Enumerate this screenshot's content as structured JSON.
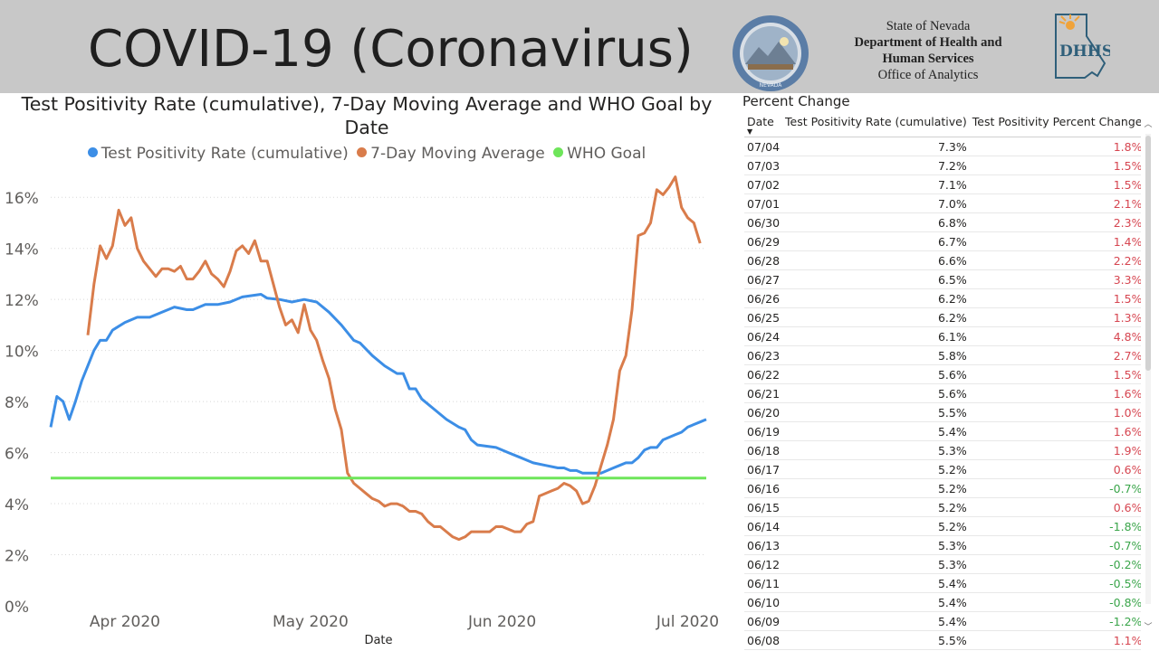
{
  "header": {
    "title": "COVID-19 (Coronavirus)",
    "org_line1": "State of Nevada",
    "org_line2": "Department of Health and",
    "org_line3": "Human Services",
    "org_line4": "Office of Analytics",
    "seal_text": "THE GREAT SEAL OF THE STATE OF NEVADA",
    "logo_text": "DHHS"
  },
  "colors": {
    "header_bg": "#c8c8c8",
    "positivity": "#3c8ee6",
    "moving_avg": "#d97c4b",
    "who_goal": "#6ee55a",
    "positive_change": "#d64550",
    "negative_change": "#3aa54a"
  },
  "chart_data": {
    "type": "line",
    "title": "Test Positivity Rate (cumulative), 7-Day Moving Average and WHO Goal by Date",
    "xlabel": "Date",
    "ylabel": "",
    "x_ticks": [
      "Apr 2020",
      "May 2020",
      "Jun 2020",
      "Jul 2020"
    ],
    "y_ticks": [
      "0%",
      "2%",
      "4%",
      "6%",
      "8%",
      "10%",
      "12%",
      "14%",
      "16%"
    ],
    "ylim": [
      0,
      17
    ],
    "x_range": [
      "2020-03-20",
      "2020-07-04"
    ],
    "grid": true,
    "legend_position": "top",
    "series": [
      {
        "name": "Test Positivity Rate (cumulative)",
        "color": "#3c8ee6",
        "points": [
          [
            "2020-03-20",
            7.0
          ],
          [
            "2020-03-21",
            8.2
          ],
          [
            "2020-03-22",
            8.0
          ],
          [
            "2020-03-23",
            7.3
          ],
          [
            "2020-03-24",
            8.0
          ],
          [
            "2020-03-25",
            8.8
          ],
          [
            "2020-03-26",
            9.4
          ],
          [
            "2020-03-27",
            10.0
          ],
          [
            "2020-03-28",
            10.4
          ],
          [
            "2020-03-29",
            10.4
          ],
          [
            "2020-03-30",
            10.8
          ],
          [
            "2020-04-01",
            11.1
          ],
          [
            "2020-04-03",
            11.3
          ],
          [
            "2020-04-05",
            11.3
          ],
          [
            "2020-04-07",
            11.5
          ],
          [
            "2020-04-09",
            11.7
          ],
          [
            "2020-04-11",
            11.6
          ],
          [
            "2020-04-12",
            11.6
          ],
          [
            "2020-04-14",
            11.8
          ],
          [
            "2020-04-16",
            11.8
          ],
          [
            "2020-04-18",
            11.9
          ],
          [
            "2020-04-20",
            12.1
          ],
          [
            "2020-04-23",
            12.2
          ],
          [
            "2020-04-24",
            12.05
          ],
          [
            "2020-04-26",
            12.0
          ],
          [
            "2020-04-28",
            11.9
          ],
          [
            "2020-04-30",
            12.0
          ],
          [
            "2020-05-02",
            11.9
          ],
          [
            "2020-05-04",
            11.5
          ],
          [
            "2020-05-06",
            11.0
          ],
          [
            "2020-05-08",
            10.4
          ],
          [
            "2020-05-09",
            10.3
          ],
          [
            "2020-05-11",
            9.8
          ],
          [
            "2020-05-13",
            9.4
          ],
          [
            "2020-05-15",
            9.1
          ],
          [
            "2020-05-16",
            9.1
          ],
          [
            "2020-05-17",
            8.5
          ],
          [
            "2020-05-18",
            8.5
          ],
          [
            "2020-05-19",
            8.1
          ],
          [
            "2020-05-21",
            7.7
          ],
          [
            "2020-05-23",
            7.3
          ],
          [
            "2020-05-25",
            7.0
          ],
          [
            "2020-05-26",
            6.9
          ],
          [
            "2020-05-27",
            6.5
          ],
          [
            "2020-05-28",
            6.3
          ],
          [
            "2020-05-31",
            6.2
          ],
          [
            "2020-06-02",
            6.0
          ],
          [
            "2020-06-04",
            5.8
          ],
          [
            "2020-06-06",
            5.6
          ],
          [
            "2020-06-08",
            5.5
          ],
          [
            "2020-06-10",
            5.4
          ],
          [
            "2020-06-11",
            5.4
          ],
          [
            "2020-06-12",
            5.3
          ],
          [
            "2020-06-13",
            5.3
          ],
          [
            "2020-06-14",
            5.2
          ],
          [
            "2020-06-15",
            5.2
          ],
          [
            "2020-06-16",
            5.2
          ],
          [
            "2020-06-17",
            5.2
          ],
          [
            "2020-06-18",
            5.3
          ],
          [
            "2020-06-19",
            5.4
          ],
          [
            "2020-06-20",
            5.5
          ],
          [
            "2020-06-21",
            5.6
          ],
          [
            "2020-06-22",
            5.6
          ],
          [
            "2020-06-23",
            5.8
          ],
          [
            "2020-06-24",
            6.1
          ],
          [
            "2020-06-25",
            6.2
          ],
          [
            "2020-06-26",
            6.2
          ],
          [
            "2020-06-27",
            6.5
          ],
          [
            "2020-06-28",
            6.6
          ],
          [
            "2020-06-29",
            6.7
          ],
          [
            "2020-06-30",
            6.8
          ],
          [
            "2020-07-01",
            7.0
          ],
          [
            "2020-07-02",
            7.1
          ],
          [
            "2020-07-03",
            7.2
          ],
          [
            "2020-07-04",
            7.3
          ]
        ]
      },
      {
        "name": "7-Day Moving Average",
        "color": "#d97c4b",
        "points": [
          [
            "2020-03-26",
            10.6
          ],
          [
            "2020-03-27",
            12.6
          ],
          [
            "2020-03-28",
            14.1
          ],
          [
            "2020-03-29",
            13.6
          ],
          [
            "2020-03-30",
            14.1
          ],
          [
            "2020-03-31",
            15.5
          ],
          [
            "2020-04-01",
            14.9
          ],
          [
            "2020-04-02",
            15.2
          ],
          [
            "2020-04-03",
            14.0
          ],
          [
            "2020-04-04",
            13.5
          ],
          [
            "2020-04-05",
            13.2
          ],
          [
            "2020-04-06",
            12.9
          ],
          [
            "2020-04-07",
            13.2
          ],
          [
            "2020-04-08",
            13.2
          ],
          [
            "2020-04-09",
            13.1
          ],
          [
            "2020-04-10",
            13.3
          ],
          [
            "2020-04-11",
            12.8
          ],
          [
            "2020-04-12",
            12.8
          ],
          [
            "2020-04-13",
            13.1
          ],
          [
            "2020-04-14",
            13.5
          ],
          [
            "2020-04-15",
            13.0
          ],
          [
            "2020-04-16",
            12.8
          ],
          [
            "2020-04-17",
            12.5
          ],
          [
            "2020-04-18",
            13.1
          ],
          [
            "2020-04-19",
            13.9
          ],
          [
            "2020-04-20",
            14.1
          ],
          [
            "2020-04-21",
            13.8
          ],
          [
            "2020-04-22",
            14.3
          ],
          [
            "2020-04-23",
            13.5
          ],
          [
            "2020-04-24",
            13.5
          ],
          [
            "2020-04-25",
            12.6
          ],
          [
            "2020-04-26",
            11.7
          ],
          [
            "2020-04-27",
            11.0
          ],
          [
            "2020-04-28",
            11.2
          ],
          [
            "2020-04-29",
            10.7
          ],
          [
            "2020-04-30",
            11.8
          ],
          [
            "2020-05-01",
            10.8
          ],
          [
            "2020-05-02",
            10.4
          ],
          [
            "2020-05-03",
            9.6
          ],
          [
            "2020-05-04",
            8.9
          ],
          [
            "2020-05-05",
            7.7
          ],
          [
            "2020-05-06",
            6.9
          ],
          [
            "2020-05-07",
            5.2
          ],
          [
            "2020-05-08",
            4.8
          ],
          [
            "2020-05-09",
            4.6
          ],
          [
            "2020-05-10",
            4.4
          ],
          [
            "2020-05-11",
            4.2
          ],
          [
            "2020-05-12",
            4.1
          ],
          [
            "2020-05-13",
            3.9
          ],
          [
            "2020-05-14",
            4.0
          ],
          [
            "2020-05-15",
            4.0
          ],
          [
            "2020-05-16",
            3.9
          ],
          [
            "2020-05-17",
            3.7
          ],
          [
            "2020-05-18",
            3.7
          ],
          [
            "2020-05-19",
            3.6
          ],
          [
            "2020-05-20",
            3.3
          ],
          [
            "2020-05-21",
            3.1
          ],
          [
            "2020-05-22",
            3.1
          ],
          [
            "2020-05-23",
            2.9
          ],
          [
            "2020-05-24",
            2.7
          ],
          [
            "2020-05-25",
            2.6
          ],
          [
            "2020-05-26",
            2.7
          ],
          [
            "2020-05-27",
            2.9
          ],
          [
            "2020-05-28",
            2.9
          ],
          [
            "2020-05-29",
            2.9
          ],
          [
            "2020-05-30",
            2.9
          ],
          [
            "2020-05-31",
            3.1
          ],
          [
            "2020-06-01",
            3.1
          ],
          [
            "2020-06-02",
            3.0
          ],
          [
            "2020-06-03",
            2.9
          ],
          [
            "2020-06-04",
            2.9
          ],
          [
            "2020-06-05",
            3.2
          ],
          [
            "2020-06-06",
            3.3
          ],
          [
            "2020-06-07",
            4.3
          ],
          [
            "2020-06-08",
            4.4
          ],
          [
            "2020-06-09",
            4.5
          ],
          [
            "2020-06-10",
            4.6
          ],
          [
            "2020-06-11",
            4.8
          ],
          [
            "2020-06-12",
            4.7
          ],
          [
            "2020-06-13",
            4.5
          ],
          [
            "2020-06-14",
            4.0
          ],
          [
            "2020-06-15",
            4.1
          ],
          [
            "2020-06-16",
            4.7
          ],
          [
            "2020-06-17",
            5.5
          ],
          [
            "2020-06-18",
            6.3
          ],
          [
            "2020-06-19",
            7.3
          ],
          [
            "2020-06-20",
            9.2
          ],
          [
            "2020-06-21",
            9.8
          ],
          [
            "2020-06-22",
            11.6
          ],
          [
            "2020-06-23",
            14.5
          ],
          [
            "2020-06-24",
            14.6
          ],
          [
            "2020-06-25",
            15.0
          ],
          [
            "2020-06-26",
            16.3
          ],
          [
            "2020-06-27",
            16.1
          ],
          [
            "2020-06-28",
            16.4
          ],
          [
            "2020-06-29",
            16.8
          ],
          [
            "2020-06-30",
            15.6
          ],
          [
            "2020-07-01",
            15.2
          ],
          [
            "2020-07-02",
            15.0
          ],
          [
            "2020-07-03",
            14.2
          ]
        ]
      },
      {
        "name": "WHO Goal",
        "color": "#6ee55a",
        "points": [
          [
            "2020-03-20",
            5.0
          ],
          [
            "2020-07-04",
            5.0
          ]
        ]
      }
    ]
  },
  "table": {
    "title": "Percent Change",
    "columns": [
      "Date",
      "Test Positivity Rate (cumulative)",
      "Test Positivity Percent Change"
    ],
    "rows": [
      [
        "07/04",
        "7.3%",
        "1.8%"
      ],
      [
        "07/03",
        "7.2%",
        "1.5%"
      ],
      [
        "07/02",
        "7.1%",
        "1.5%"
      ],
      [
        "07/01",
        "7.0%",
        "2.1%"
      ],
      [
        "06/30",
        "6.8%",
        "2.3%"
      ],
      [
        "06/29",
        "6.7%",
        "1.4%"
      ],
      [
        "06/28",
        "6.6%",
        "2.2%"
      ],
      [
        "06/27",
        "6.5%",
        "3.3%"
      ],
      [
        "06/26",
        "6.2%",
        "1.5%"
      ],
      [
        "06/25",
        "6.2%",
        "1.3%"
      ],
      [
        "06/24",
        "6.1%",
        "4.8%"
      ],
      [
        "06/23",
        "5.8%",
        "2.7%"
      ],
      [
        "06/22",
        "5.6%",
        "1.5%"
      ],
      [
        "06/21",
        "5.6%",
        "1.6%"
      ],
      [
        "06/20",
        "5.5%",
        "1.0%"
      ],
      [
        "06/19",
        "5.4%",
        "1.6%"
      ],
      [
        "06/18",
        "5.3%",
        "1.9%"
      ],
      [
        "06/17",
        "5.2%",
        "0.6%"
      ],
      [
        "06/16",
        "5.2%",
        "-0.7%"
      ],
      [
        "06/15",
        "5.2%",
        "0.6%"
      ],
      [
        "06/14",
        "5.2%",
        "-1.8%"
      ],
      [
        "06/13",
        "5.3%",
        "-0.7%"
      ],
      [
        "06/12",
        "5.3%",
        "-0.2%"
      ],
      [
        "06/11",
        "5.4%",
        "-0.5%"
      ],
      [
        "06/10",
        "5.4%",
        "-0.8%"
      ],
      [
        "06/09",
        "5.4%",
        "-1.2%"
      ],
      [
        "06/08",
        "5.5%",
        "1.1%"
      ]
    ]
  }
}
